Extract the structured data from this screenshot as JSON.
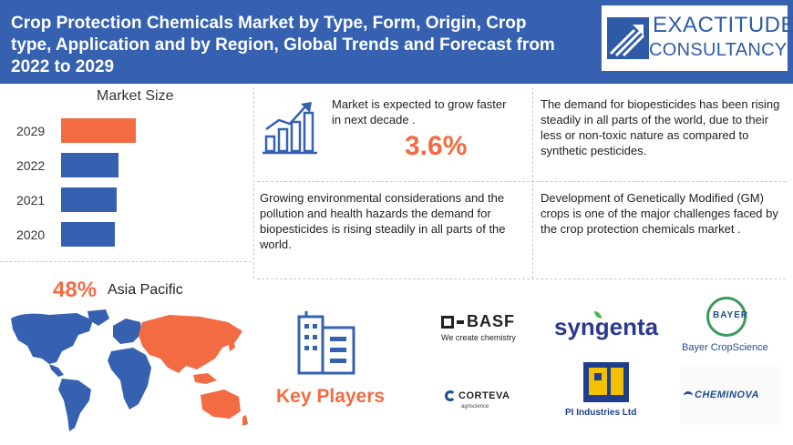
{
  "header": {
    "title": "Crop Protection Chemicals Market by Type, Form, Origin, Crop type, Application and by Region, Global Trends and Forecast from 2022 to 2029",
    "logo_line1": "EXACTITUDE",
    "logo_line2": "CONSULTANCY",
    "logo_icon": "rising-arrows-logo-icon"
  },
  "market_size": {
    "title": "Market Size",
    "bars": [
      {
        "label": "2029",
        "color": "#f26b43",
        "relative": 1.0
      },
      {
        "label": "2022",
        "color": "#3561b0",
        "relative": 0.77
      },
      {
        "label": "2021",
        "color": "#3561b0",
        "relative": 0.74
      },
      {
        "label": "2020",
        "color": "#3561b0",
        "relative": 0.72
      }
    ]
  },
  "growth": {
    "icon": "bar-chart-growth-icon",
    "text": "Market is expected to grow faster in next decade .",
    "rate": "3.6%"
  },
  "insights": {
    "biopesticides_demand": "The demand for biopesticides has been rising steadily in all parts of the world, due to their less or non-toxic nature as compared to synthetic pesticides.",
    "environmental": "Growing environmental considerations and the pollution and health hazards  the demand for biopesticides is rising steadily in all parts of the world.",
    "gm_crops": "Development of Genetically Modified (GM) crops is one of the major challenges faced by the crop protection chemicals market ."
  },
  "region": {
    "share": "48%",
    "name": "Asia Pacific",
    "highlight_color": "#f26b43",
    "base_color": "#3561b0"
  },
  "key_players": {
    "label": "Key Players",
    "icon": "office-building-icon",
    "companies": {
      "basf": {
        "name": "BASF",
        "tagline": "We create chemistry"
      },
      "syngenta": {
        "name": "syngenta"
      },
      "bayer": {
        "name": "Bayer CropScience",
        "seal": "BAYER"
      },
      "corteva": {
        "name": "CORTEVA",
        "tagline": "agriscience"
      },
      "pi": {
        "name": "PI Industries Ltd"
      },
      "cheminova": {
        "name": "CHEMINOVA"
      }
    }
  },
  "colors": {
    "primary": "#3561b0",
    "accent": "#f26b43"
  }
}
